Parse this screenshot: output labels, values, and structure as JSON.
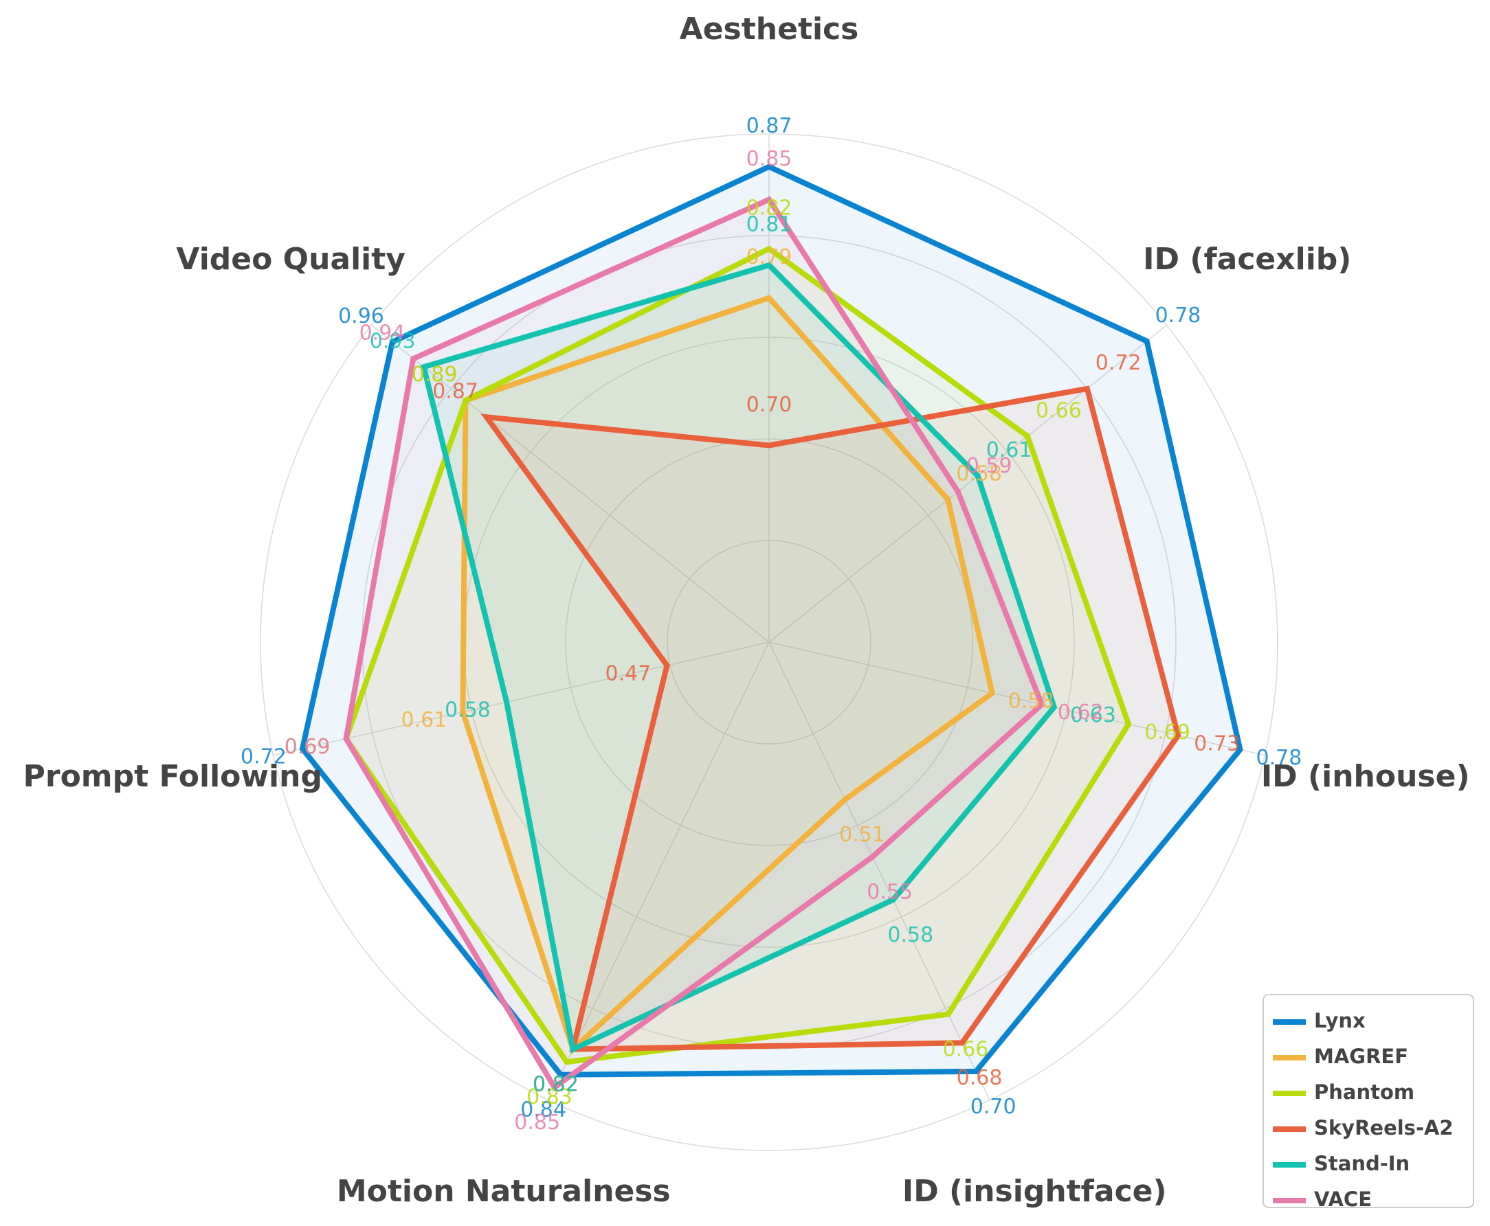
{
  "chart_data": {
    "type": "radar",
    "axes": [
      "Aesthetics",
      "ID (facexlib)",
      "ID (inhouse)",
      "ID (insightface)",
      "Motion Naturalness",
      "Prompt Following",
      "Video Quality"
    ],
    "axis_ranges": [
      [
        0.58,
        0.89
      ],
      [
        0.4,
        0.8
      ],
      [
        0.4,
        0.8
      ],
      [
        0.4,
        0.72
      ],
      [
        0.5,
        0.86
      ],
      [
        0.4,
        0.74
      ],
      [
        0.6,
        0.98
      ]
    ],
    "series": [
      {
        "name": "Lynx",
        "color": "#0a84d0",
        "values": [
          0.87,
          0.78,
          0.78,
          0.7,
          0.84,
          0.72,
          0.96
        ],
        "labels": [
          "0.87",
          "0.78",
          "0.78",
          "0.70",
          "0.84",
          "0.72",
          "0.96"
        ]
      },
      {
        "name": "MAGREF",
        "color": "#f2b23e",
        "values": [
          0.79,
          0.58,
          0.58,
          0.51,
          0.82,
          0.61,
          0.89
        ],
        "labels": [
          "0.79",
          "0.58",
          "0.58",
          "0.51",
          "0.82",
          "0.61",
          "0.89"
        ]
      },
      {
        "name": "Phantom",
        "color": "#b8db0a",
        "values": [
          0.82,
          0.66,
          0.69,
          0.66,
          0.83,
          0.69,
          0.89
        ],
        "labels": [
          "0.82",
          "0.66",
          "0.69",
          "0.66",
          "0.83",
          "0.69",
          "0.89"
        ]
      },
      {
        "name": "SkyReels-A2",
        "color": "#e8603c",
        "values": [
          0.7,
          0.72,
          0.73,
          0.68,
          0.82,
          0.47,
          0.87
        ],
        "labels": [
          "0.70",
          "0.72",
          "0.73",
          "0.68",
          "0.82",
          "0.47",
          "0.87"
        ]
      },
      {
        "name": "Stand-In",
        "color": "#14c2b0",
        "values": [
          0.81,
          0.61,
          0.63,
          0.58,
          0.82,
          0.58,
          0.93
        ],
        "labels": [
          "0.81",
          "0.61",
          "0.63",
          "0.58",
          "0.82",
          "0.58",
          "0.93"
        ]
      },
      {
        "name": "VACE",
        "color": "#e87aab",
        "values": [
          0.85,
          0.59,
          0.62,
          0.55,
          0.85,
          0.69,
          0.94
        ],
        "labels": [
          "0.85",
          "0.59",
          "0.62",
          "0.55",
          "0.85",
          "0.69",
          "0.94"
        ]
      }
    ],
    "grid": true,
    "legend": "bottom-right"
  }
}
